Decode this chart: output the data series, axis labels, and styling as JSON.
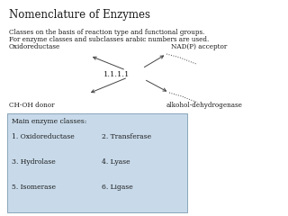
{
  "title": "Nomenclature of Enzymes",
  "line1": "Classes on the basis of reaction type and functional groups.",
  "line2": "For enzyme classes and subclasses arabic numbers are used.",
  "oxidoreductase_label": "Oxidoreductase",
  "nadp_label": "NAD(P) acceptor",
  "center_label": "1.1.1.1",
  "choh_label": "CH-OH donor",
  "alkohol_label": "alkohol-dehydrogenase",
  "box_title": "Main enzyme classes:",
  "classes": [
    [
      "1. Oxidoreductase",
      "2. Transferase"
    ],
    [
      "3. Hydrolase",
      "4. Lyase"
    ],
    [
      "5. Isomerase",
      "6. Ligase"
    ]
  ],
  "bg_color": "#ffffff",
  "box_color": "#c8daea",
  "text_color": "#1a1a1a",
  "arrow_color": "#444444"
}
